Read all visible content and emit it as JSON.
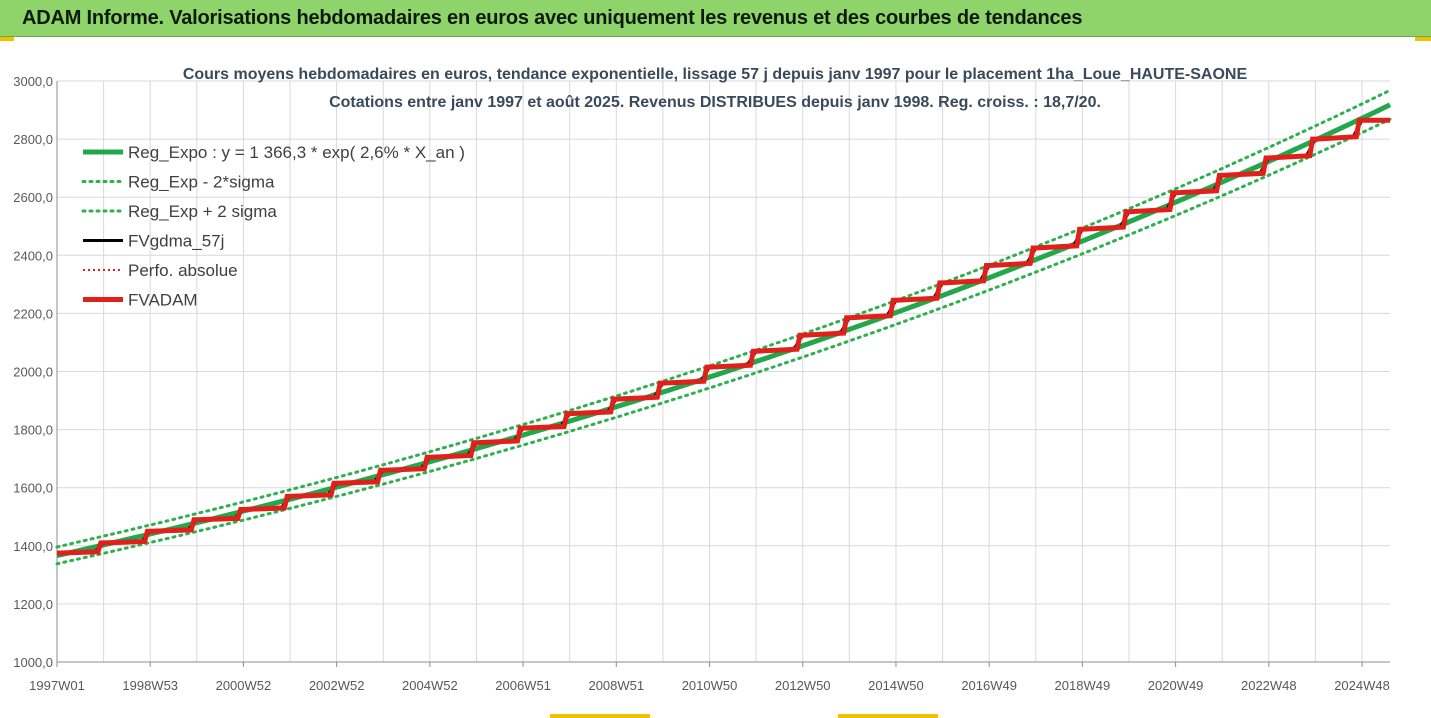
{
  "header": {
    "title": "ADAM Informe. Valorisations hebdomadaires en euros avec uniquement les revenus et des courbes de tendances"
  },
  "colors": {
    "header_bg": "#8fd46a",
    "green": "#22a84a",
    "green_dotted": "#2fb04f",
    "black": "#000000",
    "red": "#e0201a",
    "grid": "#d9d9d9"
  },
  "chart_data": {
    "type": "line",
    "title": "Cours moyens hebdomadaires en euros, tendance exponentielle, lissage 57 j depuis janv 1997 pour le placement 1ha_Loue_HAUTE-SAONE",
    "subtitle": "Cotations entre janv 1997 et août 2025. Revenus DISTRIBUES depuis janv 1998. Reg. croiss. : 18,7/20.",
    "xlabel": "",
    "ylabel": "",
    "ylim": [
      1000,
      3000
    ],
    "y_ticks": [
      "1000,0",
      "1200,0",
      "1400,0",
      "1600,0",
      "1800,0",
      "2000,0",
      "2200,0",
      "2400,0",
      "2600,0",
      "2800,0",
      "3000,0"
    ],
    "x_ticks": [
      "1997W01",
      "1998W53",
      "2000W52",
      "2002W52",
      "2004W52",
      "2006W51",
      "2008W51",
      "2010W50",
      "2012W50",
      "2014W50",
      "2016W49",
      "2018W49",
      "2020W49",
      "2022W48",
      "2024W48"
    ],
    "x_range_years": [
      1997.0,
      2025.6
    ],
    "grid": true,
    "legend_position": "top-left",
    "legend": [
      {
        "label": "Reg_Expo : y = 1 366,3 * exp( 2,6% *  X_an )",
        "style": "solid-thick",
        "color": "#22a84a"
      },
      {
        "label": "Reg_Exp - 2*sigma",
        "style": "dotted",
        "color": "#2fb04f"
      },
      {
        "label": "Reg_Exp + 2 sigma",
        "style": "dotted",
        "color": "#2fb04f"
      },
      {
        "label": "FVgdma_57j",
        "style": "solid",
        "color": "#000000"
      },
      {
        "label": "Perfo. absolue",
        "style": "dotted-thin",
        "color": "#e0201a"
      },
      {
        "label": "FVADAM",
        "style": "solid-thick",
        "color": "#e0201a"
      }
    ],
    "series": [
      {
        "name": "Reg_Expo : y = 1 366,3 * exp( 2,6% *  X_an )",
        "x": [
          1997.0,
          2025.6
        ],
        "values": [
          1366.3,
          2918
        ],
        "model": "exponential",
        "rate": 0.026
      },
      {
        "name": "Reg_Exp - 2*sigma",
        "x": [
          1997.0,
          2025.6
        ],
        "values": [
          1338,
          2868
        ],
        "model": "exponential"
      },
      {
        "name": "Reg_Exp + 2 sigma",
        "x": [
          1997.0,
          2025.6
        ],
        "values": [
          1396,
          2968
        ],
        "model": "exponential"
      },
      {
        "name": "FVADAM",
        "x": [
          1997.0,
          1998,
          1999,
          2000,
          2001,
          2002,
          2003,
          2004,
          2005,
          2006,
          2007,
          2008,
          2009,
          2010,
          2011,
          2012,
          2013,
          2014,
          2015,
          2016,
          2017,
          2018,
          2019,
          2020,
          2021,
          2022,
          2023,
          2024,
          2025,
          2025.6
        ],
        "values": [
          1375,
          1410,
          1450,
          1490,
          1525,
          1570,
          1615,
          1660,
          1705,
          1755,
          1805,
          1855,
          1905,
          1960,
          2015,
          2070,
          2125,
          2185,
          2245,
          2305,
          2365,
          2425,
          2490,
          2550,
          2615,
          2675,
          2735,
          2800,
          2865,
          2865
        ],
        "model": "annual-steps"
      },
      {
        "name": "FVgdma_57j",
        "model": "smoothed-steps-of-FVADAM"
      },
      {
        "name": "Perfo. absolue",
        "model": "same-as-FVADAM"
      }
    ]
  }
}
